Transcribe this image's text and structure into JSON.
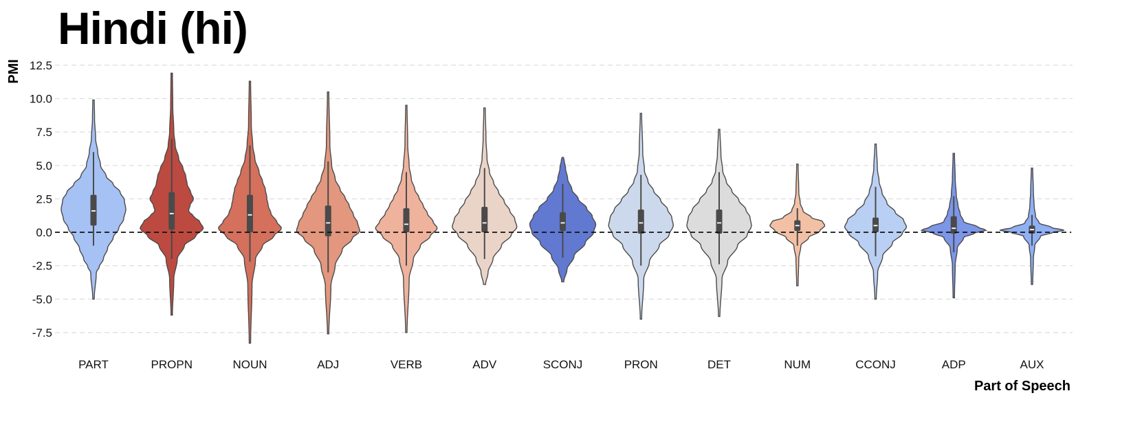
{
  "chart_data": {
    "type": "violin",
    "title": "Hindi (hi)",
    "xlabel": "Part of Speech",
    "ylabel": "PMI",
    "ylim": [
      -8.6,
      12.9
    ],
    "yticks": [
      -7.5,
      -5.0,
      -2.5,
      0.0,
      2.5,
      5.0,
      7.5,
      10.0,
      12.5
    ],
    "ytick_labels": [
      "-7.5",
      "-5.0",
      "-2.5",
      "0.0",
      "2.5",
      "5.0",
      "7.5",
      "10.0",
      "12.5"
    ],
    "grid": "horizontal dashed",
    "reference_line": 0.0,
    "categories": [
      "PART",
      "PROPN",
      "NOUN",
      "ADJ",
      "VERB",
      "ADV",
      "SCONJ",
      "PRON",
      "DET",
      "NUM",
      "CCONJ",
      "ADP",
      "AUX"
    ],
    "series": [
      {
        "category": "PART",
        "color": "#a6c1f3",
        "min": -5.0,
        "max": 9.9,
        "q1": 0.5,
        "median": 1.6,
        "q3": 2.8,
        "whisker_low": -1.0,
        "whisker_high": 6.0,
        "density": [
          [
            -5.0,
            1
          ],
          [
            -3.0,
            4
          ],
          [
            -2.6,
            8
          ],
          [
            -2.0,
            14
          ],
          [
            -1.2,
            20
          ],
          [
            -0.4,
            28
          ],
          [
            0.3,
            36
          ],
          [
            1.0,
            43
          ],
          [
            1.7,
            46
          ],
          [
            2.4,
            44
          ],
          [
            3.0,
            38
          ],
          [
            3.6,
            28
          ],
          [
            4.2,
            18
          ],
          [
            5.0,
            10
          ],
          [
            6.0,
            6
          ],
          [
            7.0,
            3
          ],
          [
            8.5,
            1.5
          ],
          [
            9.9,
            1
          ]
        ]
      },
      {
        "category": "PROPN",
        "color": "#bd4a40",
        "min": -6.2,
        "max": 11.9,
        "q1": 0.2,
        "median": 1.4,
        "q3": 3.0,
        "whisker_low": -2.0,
        "whisker_high": 7.0,
        "density": [
          [
            -6.2,
            1
          ],
          [
            -3.5,
            3
          ],
          [
            -2.0,
            8
          ],
          [
            -1.0,
            18
          ],
          [
            -0.3,
            34
          ],
          [
            0.3,
            45
          ],
          [
            0.8,
            40
          ],
          [
            1.2,
            31
          ],
          [
            1.6,
            24
          ],
          [
            2.0,
            26
          ],
          [
            2.5,
            31
          ],
          [
            3.0,
            27
          ],
          [
            3.6,
            22
          ],
          [
            4.2,
            20
          ],
          [
            4.8,
            16
          ],
          [
            5.5,
            10
          ],
          [
            6.5,
            5
          ],
          [
            7.5,
            3
          ],
          [
            9.5,
            1.5
          ],
          [
            11.9,
            1
          ]
        ]
      },
      {
        "category": "NOUN",
        "color": "#d4705c",
        "min": -8.3,
        "max": 11.3,
        "q1": 0.0,
        "median": 1.3,
        "q3": 2.8,
        "whisker_low": -2.2,
        "whisker_high": 6.5,
        "density": [
          [
            -8.3,
            1
          ],
          [
            -4.0,
            3
          ],
          [
            -2.0,
            8
          ],
          [
            -1.0,
            18
          ],
          [
            -0.3,
            34
          ],
          [
            0.3,
            45
          ],
          [
            0.8,
            38
          ],
          [
            1.4,
            30
          ],
          [
            2.0,
            26
          ],
          [
            2.6,
            24
          ],
          [
            3.2,
            22
          ],
          [
            3.8,
            18
          ],
          [
            4.5,
            13
          ],
          [
            5.5,
            7
          ],
          [
            6.5,
            4
          ],
          [
            8.0,
            2
          ],
          [
            11.3,
            1
          ]
        ]
      },
      {
        "category": "ADJ",
        "color": "#e2977e",
        "min": -7.6,
        "max": 10.5,
        "q1": -0.3,
        "median": 0.7,
        "q3": 2.0,
        "whisker_low": -3.0,
        "whisker_high": 5.3,
        "density": [
          [
            -7.6,
            1
          ],
          [
            -4.0,
            4
          ],
          [
            -2.5,
            10
          ],
          [
            -1.3,
            20
          ],
          [
            -0.5,
            34
          ],
          [
            0.1,
            45
          ],
          [
            0.7,
            42
          ],
          [
            1.3,
            36
          ],
          [
            2.0,
            30
          ],
          [
            2.6,
            24
          ],
          [
            3.2,
            17
          ],
          [
            4.0,
            10
          ],
          [
            5.0,
            5
          ],
          [
            6.5,
            2.5
          ],
          [
            10.5,
            1
          ]
        ]
      },
      {
        "category": "VERB",
        "color": "#efb29c",
        "min": -7.5,
        "max": 9.5,
        "q1": 0.0,
        "median": 0.6,
        "q3": 1.8,
        "whisker_low": -2.5,
        "whisker_high": 4.5,
        "density": [
          [
            -7.5,
            1
          ],
          [
            -3.5,
            4
          ],
          [
            -2.0,
            10
          ],
          [
            -1.0,
            20
          ],
          [
            -0.3,
            34
          ],
          [
            0.3,
            44
          ],
          [
            0.8,
            38
          ],
          [
            1.4,
            30
          ],
          [
            2.0,
            24
          ],
          [
            2.6,
            18
          ],
          [
            3.2,
            12
          ],
          [
            4.0,
            7
          ],
          [
            5.0,
            4
          ],
          [
            6.5,
            2
          ],
          [
            9.5,
            1
          ]
        ]
      },
      {
        "category": "ADV",
        "color": "#ead4c8",
        "min": -3.9,
        "max": 9.3,
        "q1": 0.0,
        "median": 0.7,
        "q3": 1.9,
        "whisker_low": -2.0,
        "whisker_high": 4.8,
        "density": [
          [
            -3.9,
            1.5
          ],
          [
            -3.0,
            5
          ],
          [
            -2.0,
            12
          ],
          [
            -1.0,
            24
          ],
          [
            -0.2,
            38
          ],
          [
            0.4,
            46
          ],
          [
            1.0,
            43
          ],
          [
            1.6,
            36
          ],
          [
            2.3,
            28
          ],
          [
            3.0,
            20
          ],
          [
            3.7,
            13
          ],
          [
            4.5,
            7
          ],
          [
            5.5,
            3.5
          ],
          [
            7.0,
            2
          ],
          [
            9.3,
            1
          ]
        ]
      },
      {
        "category": "SCONJ",
        "color": "#6279d1",
        "min": -3.7,
        "max": 5.6,
        "q1": 0.1,
        "median": 0.7,
        "q3": 1.5,
        "whisker_low": -1.9,
        "whisker_high": 3.6,
        "density": [
          [
            -3.7,
            1.5
          ],
          [
            -2.8,
            6
          ],
          [
            -1.8,
            16
          ],
          [
            -0.8,
            32
          ],
          [
            0.0,
            44
          ],
          [
            0.6,
            47
          ],
          [
            1.2,
            42
          ],
          [
            1.8,
            34
          ],
          [
            2.5,
            22
          ],
          [
            3.2,
            13
          ],
          [
            4.0,
            7
          ],
          [
            4.8,
            4
          ],
          [
            5.4,
            2
          ],
          [
            5.6,
            1
          ]
        ]
      },
      {
        "category": "PRON",
        "color": "#ccd9ed",
        "min": -6.5,
        "max": 8.9,
        "q1": -0.1,
        "median": 0.7,
        "q3": 1.7,
        "whisker_low": -2.5,
        "whisker_high": 4.3,
        "density": [
          [
            -6.5,
            1
          ],
          [
            -3.5,
            4
          ],
          [
            -2.2,
            12
          ],
          [
            -1.0,
            26
          ],
          [
            -0.2,
            40
          ],
          [
            0.5,
            46
          ],
          [
            1.1,
            44
          ],
          [
            1.7,
            38
          ],
          [
            2.4,
            28
          ],
          [
            3.1,
            18
          ],
          [
            3.8,
            10
          ],
          [
            4.6,
            5
          ],
          [
            6.0,
            2.5
          ],
          [
            8.9,
            1
          ]
        ]
      },
      {
        "category": "DET",
        "color": "#dcdcdc",
        "min": -6.3,
        "max": 7.7,
        "q1": -0.1,
        "median": 0.7,
        "q3": 1.7,
        "whisker_low": -2.4,
        "whisker_high": 4.5,
        "density": [
          [
            -6.3,
            1
          ],
          [
            -3.5,
            4
          ],
          [
            -2.2,
            12
          ],
          [
            -1.0,
            26
          ],
          [
            -0.2,
            40
          ],
          [
            0.5,
            46
          ],
          [
            1.1,
            44
          ],
          [
            1.7,
            38
          ],
          [
            2.4,
            28
          ],
          [
            3.1,
            18
          ],
          [
            3.8,
            10
          ],
          [
            4.6,
            5
          ],
          [
            5.8,
            2.5
          ],
          [
            7.7,
            1
          ]
        ]
      },
      {
        "category": "NUM",
        "color": "#f2c1a5",
        "min": -4.0,
        "max": 5.1,
        "q1": 0.1,
        "median": 0.5,
        "q3": 0.9,
        "whisker_low": -1.0,
        "whisker_high": 1.8,
        "density": [
          [
            -4.0,
            1
          ],
          [
            -2.0,
            2
          ],
          [
            -1.0,
            5
          ],
          [
            -0.4,
            16
          ],
          [
            0.1,
            32
          ],
          [
            0.5,
            39
          ],
          [
            0.8,
            36
          ],
          [
            1.1,
            20
          ],
          [
            1.6,
            8
          ],
          [
            2.2,
            4
          ],
          [
            3.0,
            2
          ],
          [
            5.1,
            1
          ]
        ]
      },
      {
        "category": "CCONJ",
        "color": "#b9cff3",
        "min": -5.0,
        "max": 6.6,
        "q1": 0.0,
        "median": 0.5,
        "q3": 1.1,
        "whisker_low": -1.8,
        "whisker_high": 3.4,
        "density": [
          [
            -5.0,
            1
          ],
          [
            -3.0,
            3
          ],
          [
            -1.8,
            10
          ],
          [
            -0.8,
            24
          ],
          [
            -0.1,
            38
          ],
          [
            0.4,
            44
          ],
          [
            0.9,
            40
          ],
          [
            1.5,
            28
          ],
          [
            2.2,
            16
          ],
          [
            3.0,
            9
          ],
          [
            3.8,
            5
          ],
          [
            4.8,
            2.5
          ],
          [
            6.6,
            1
          ]
        ]
      },
      {
        "category": "ADP",
        "color": "#7c96e8",
        "min": -4.9,
        "max": 5.9,
        "q1": -0.1,
        "median": 0.3,
        "q3": 1.2,
        "whisker_low": -1.5,
        "whisker_high": 2.7,
        "density": [
          [
            -4.9,
            1
          ],
          [
            -2.5,
            2
          ],
          [
            -1.2,
            5
          ],
          [
            -0.4,
            14
          ],
          [
            -0.05,
            30
          ],
          [
            0.15,
            46
          ],
          [
            0.4,
            34
          ],
          [
            0.8,
            14
          ],
          [
            1.4,
            9
          ],
          [
            2.0,
            6
          ],
          [
            2.8,
            3.5
          ],
          [
            4.0,
            2
          ],
          [
            5.9,
            1
          ]
        ]
      },
      {
        "category": "AUX",
        "color": "#8fb0f5",
        "min": -3.9,
        "max": 4.8,
        "q1": -0.1,
        "median": 0.2,
        "q3": 0.5,
        "whisker_low": -1.0,
        "whisker_high": 1.3,
        "density": [
          [
            -3.9,
            1
          ],
          [
            -2.0,
            2
          ],
          [
            -1.0,
            4
          ],
          [
            -0.3,
            12
          ],
          [
            0.0,
            30
          ],
          [
            0.15,
            46
          ],
          [
            0.35,
            28
          ],
          [
            0.7,
            10
          ],
          [
            1.2,
            5
          ],
          [
            2.0,
            3
          ],
          [
            3.0,
            2
          ],
          [
            4.8,
            1
          ]
        ]
      }
    ]
  }
}
